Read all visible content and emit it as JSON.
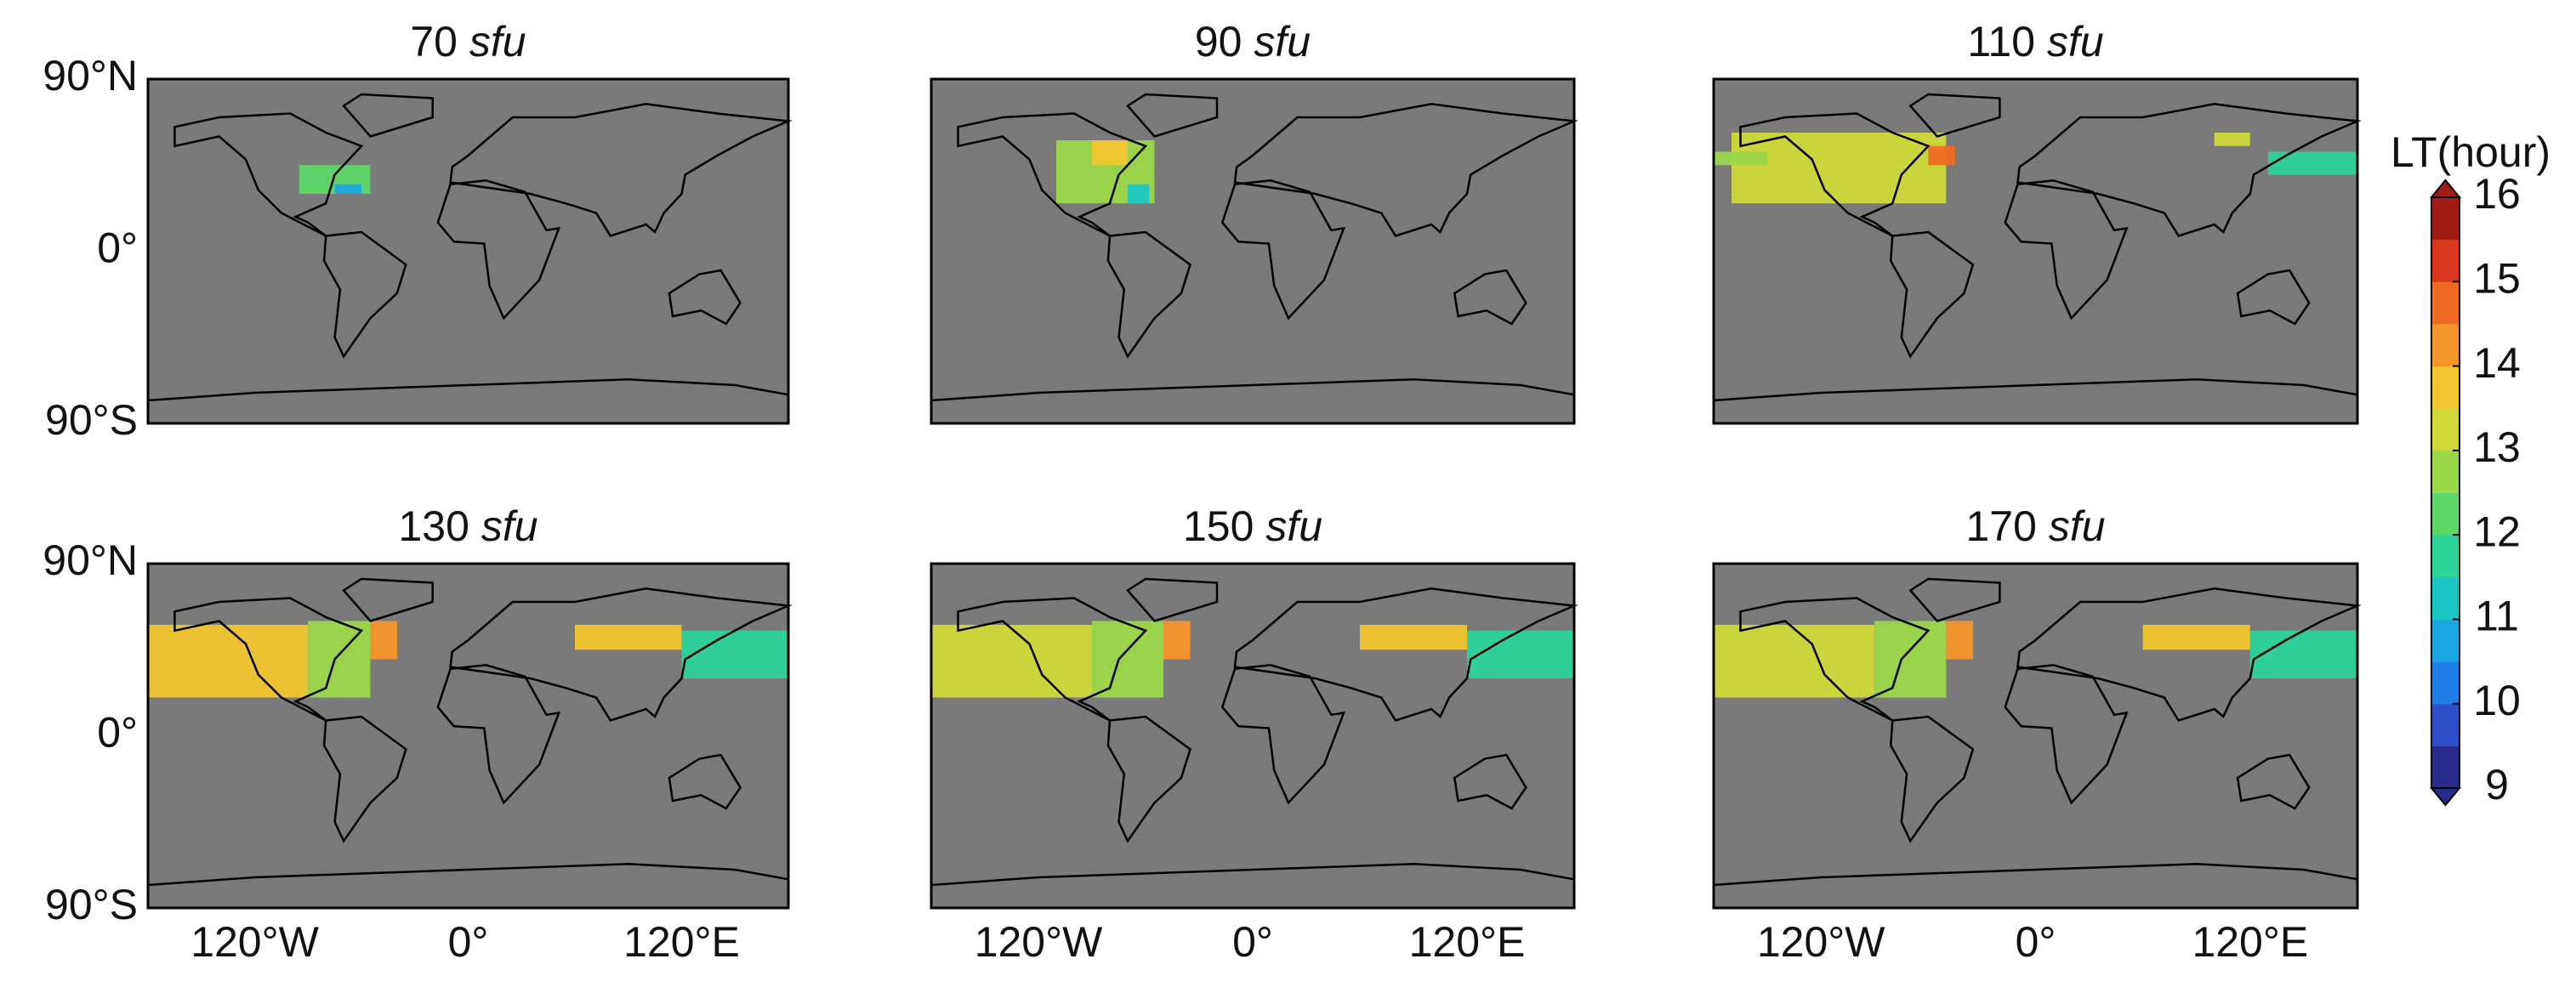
{
  "lat_ticks": [
    {
      "value": 90,
      "label": "90°N"
    },
    {
      "value": 0,
      "label": "0°"
    },
    {
      "value": -90,
      "label": "90°S"
    }
  ],
  "lon_ticks": [
    {
      "value": -120,
      "label": "120°W"
    },
    {
      "value": 0,
      "label": "0°"
    },
    {
      "value": 120,
      "label": "120°E"
    }
  ],
  "lon_lim": [
    -180,
    180
  ],
  "lat_lim": [
    -90,
    90
  ],
  "panels": [
    {
      "number": "70",
      "unit": "sfu",
      "patches": [
        {
          "lon": [
            -95,
            -55
          ],
          "lat": [
            30,
            45
          ],
          "lt": 12
        },
        {
          "lon": [
            -75,
            -60
          ],
          "lat": [
            30,
            35
          ],
          "lt": 10.5
        }
      ]
    },
    {
      "number": "90",
      "unit": "sfu",
      "patches": [
        {
          "lon": [
            -110,
            -55
          ],
          "lat": [
            25,
            58
          ],
          "lt": 12.5
        },
        {
          "lon": [
            -90,
            -70
          ],
          "lat": [
            45,
            58
          ],
          "lt": 13.5
        },
        {
          "lon": [
            -70,
            -58
          ],
          "lat": [
            25,
            35
          ],
          "lt": 11
        }
      ]
    },
    {
      "number": "110",
      "unit": "sfu",
      "patches": [
        {
          "lon": [
            -170,
            -50
          ],
          "lat": [
            25,
            62
          ],
          "lt": 13
        },
        {
          "lon": [
            -180,
            -150
          ],
          "lat": [
            45,
            52
          ],
          "lt": 12.5
        },
        {
          "lon": [
            -60,
            -45
          ],
          "lat": [
            45,
            55
          ],
          "lt": 14.5
        },
        {
          "lon": [
            100,
            120
          ],
          "lat": [
            55,
            62
          ],
          "lt": 13
        },
        {
          "lon": [
            130,
            180
          ],
          "lat": [
            40,
            52
          ],
          "lt": 11.5
        }
      ]
    },
    {
      "number": "130",
      "unit": "sfu",
      "patches": [
        {
          "lon": [
            -180,
            -90
          ],
          "lat": [
            20,
            58
          ],
          "lt": 13.5
        },
        {
          "lon": [
            -90,
            -55
          ],
          "lat": [
            20,
            60
          ],
          "lt": 12.5
        },
        {
          "lon": [
            -55,
            -40
          ],
          "lat": [
            40,
            60
          ],
          "lt": 14
        },
        {
          "lon": [
            60,
            120
          ],
          "lat": [
            45,
            58
          ],
          "lt": 13.5
        },
        {
          "lon": [
            120,
            180
          ],
          "lat": [
            30,
            55
          ],
          "lt": 11.5
        }
      ]
    },
    {
      "number": "150",
      "unit": "sfu",
      "patches": [
        {
          "lon": [
            -180,
            -90
          ],
          "lat": [
            20,
            58
          ],
          "lt": 13
        },
        {
          "lon": [
            -90,
            -50
          ],
          "lat": [
            20,
            60
          ],
          "lt": 12.5
        },
        {
          "lon": [
            -50,
            -35
          ],
          "lat": [
            40,
            60
          ],
          "lt": 14
        },
        {
          "lon": [
            60,
            120
          ],
          "lat": [
            45,
            58
          ],
          "lt": 13.5
        },
        {
          "lon": [
            120,
            180
          ],
          "lat": [
            30,
            55
          ],
          "lt": 11.5
        }
      ]
    },
    {
      "number": "170",
      "unit": "sfu",
      "patches": [
        {
          "lon": [
            -180,
            -90
          ],
          "lat": [
            20,
            58
          ],
          "lt": 13
        },
        {
          "lon": [
            -90,
            -50
          ],
          "lat": [
            20,
            60
          ],
          "lt": 12.5
        },
        {
          "lon": [
            -50,
            -35
          ],
          "lat": [
            40,
            60
          ],
          "lt": 14
        },
        {
          "lon": [
            60,
            120
          ],
          "lat": [
            45,
            58
          ],
          "lt": 13.5
        },
        {
          "lon": [
            120,
            180
          ],
          "lat": [
            30,
            55
          ],
          "lt": 11.5
        }
      ]
    }
  ],
  "colorbar": {
    "label": "LT(hour)",
    "lim": [
      9,
      16
    ],
    "ticks": [
      9,
      10,
      11,
      12,
      13,
      14,
      15,
      16
    ],
    "colors": [
      "#2a2a8c",
      "#2e4fc8",
      "#1f7ee8",
      "#1aa7e0",
      "#1cc6c2",
      "#2ed39a",
      "#5ed66a",
      "#9bd84a",
      "#cfd93a",
      "#f2c631",
      "#f5962a",
      "#ef6a22",
      "#d9381e",
      "#a01b13"
    ]
  }
}
